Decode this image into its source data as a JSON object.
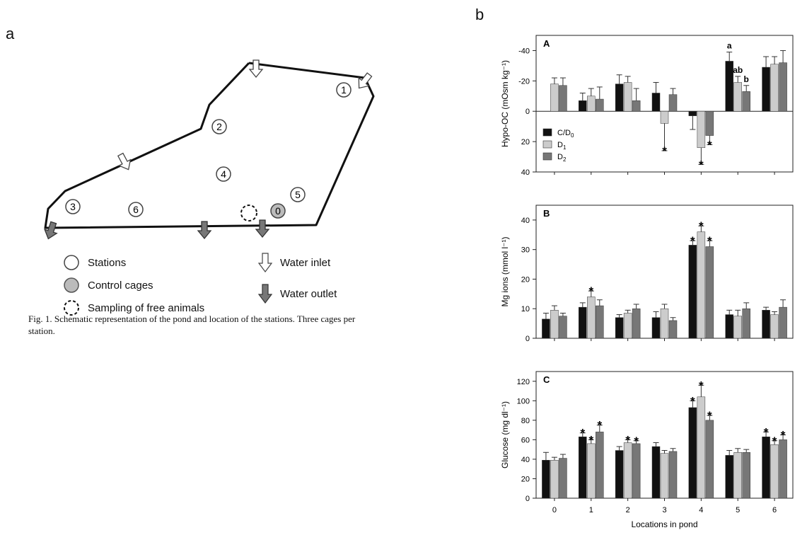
{
  "panel_labels": {
    "a": "a",
    "b": "b"
  },
  "map": {
    "stations": [
      {
        "id": "1",
        "kind": "station"
      },
      {
        "id": "2",
        "kind": "station"
      },
      {
        "id": "3",
        "kind": "station"
      },
      {
        "id": "4",
        "kind": "station"
      },
      {
        "id": "5",
        "kind": "station"
      },
      {
        "id": "6",
        "kind": "station"
      },
      {
        "id": "0",
        "kind": "control"
      }
    ],
    "legend": {
      "stations": "Stations",
      "control": "Control cages",
      "free": "Sampling of free animals",
      "inlet": "Water inlet",
      "outlet": "Water outlet"
    },
    "caption": "Fig. 1. Schematic representation of the pond and location of the stations. Three cages per station."
  },
  "chart_data": {
    "type": "bar",
    "xlabel": "Locations in pond",
    "categories": [
      "0",
      "1",
      "2",
      "3",
      "4",
      "5",
      "6"
    ],
    "legend": [
      {
        "main": "C/D",
        "sub": "0",
        "color": "#111111"
      },
      {
        "main": "D",
        "sub": "1",
        "color": "#cccccc"
      },
      {
        "main": "D",
        "sub": "2",
        "color": "#777777"
      }
    ],
    "subplots": [
      {
        "letter": "A",
        "ylabel": "Hypo-OC (mOsm kg⁻¹)",
        "ylim": [
          -50,
          40
        ],
        "inverted": true,
        "ticks": [
          -40,
          -20,
          0,
          20,
          40
        ],
        "tick_labels": [
          "-40",
          "-20",
          "0",
          "20",
          "40"
        ],
        "series": [
          {
            "values": [
              null,
              -7,
              -18,
              -12,
              3,
              -33,
              -29
            ],
            "err": [
              0,
              5,
              6,
              7,
              9,
              6,
              7
            ]
          },
          {
            "values": [
              -18,
              -10,
              -19,
              8,
              24,
              -19,
              -31
            ],
            "err": [
              4,
              5,
              4,
              18,
              11,
              4,
              5
            ]
          },
          {
            "values": [
              -17,
              -8,
              -7,
              -11,
              16,
              -13,
              -32
            ],
            "err": [
              5,
              8,
              8,
              4,
              6,
              4,
              8
            ]
          }
        ],
        "annotations": [
          {
            "cat": 3,
            "series": 1,
            "text": "*"
          },
          {
            "cat": 4,
            "series": 1,
            "text": "*"
          },
          {
            "cat": 4,
            "series": 2,
            "text": "*"
          },
          {
            "cat": 5,
            "series": 0,
            "text": "a"
          },
          {
            "cat": 5,
            "series": 1,
            "text": "ab"
          },
          {
            "cat": 5,
            "series": 2,
            "text": "b"
          }
        ]
      },
      {
        "letter": "B",
        "ylabel": "Mg ions (mmol l⁻¹)",
        "ylim": [
          0,
          45
        ],
        "inverted": false,
        "ticks": [
          0,
          10,
          20,
          30,
          40
        ],
        "tick_labels": [
          "0",
          "10",
          "20",
          "30",
          "40"
        ],
        "series": [
          {
            "values": [
              6.5,
              10.5,
              7,
              7,
              31.5,
              8,
              9.5
            ],
            "err": [
              2,
              1.5,
              1,
              2,
              1.5,
              1.5,
              1
            ]
          },
          {
            "values": [
              9.5,
              14,
              8.5,
              10,
              36,
              7.5,
              8
            ],
            "err": [
              1.5,
              2,
              1,
              1.5,
              2,
              2,
              1
            ]
          },
          {
            "values": [
              7.5,
              11,
              10,
              6,
              31,
              10,
              10.5
            ],
            "err": [
              1,
              2,
              1.5,
              1,
              2,
              2,
              2.5
            ]
          }
        ],
        "annotations": [
          {
            "cat": 1,
            "series": 1,
            "text": "*"
          },
          {
            "cat": 4,
            "series": 0,
            "text": "*"
          },
          {
            "cat": 4,
            "series": 1,
            "text": "*"
          },
          {
            "cat": 4,
            "series": 2,
            "text": "*"
          }
        ]
      },
      {
        "letter": "C",
        "ylabel": "Glucose (mg dl⁻¹)",
        "ylim": [
          0,
          130
        ],
        "inverted": false,
        "ticks": [
          0,
          20,
          40,
          60,
          80,
          100,
          120
        ],
        "tick_labels": [
          "0",
          "20",
          "40",
          "60",
          "80",
          "100",
          "120"
        ],
        "series": [
          {
            "values": [
              39,
              63,
              49,
              53,
              93,
              44,
              63
            ],
            "err": [
              8,
              4,
              4,
              4,
              7,
              5,
              5
            ]
          },
          {
            "values": [
              39,
              56,
              57,
              46,
              104,
              47,
              55
            ],
            "err": [
              3,
              4,
              3,
              3,
              12,
              4,
              4
            ]
          },
          {
            "values": [
              41,
              68,
              56,
              48,
              80,
              47,
              60
            ],
            "err": [
              4,
              7,
              3,
              3,
              5,
              3,
              5
            ]
          }
        ],
        "annotations": [
          {
            "cat": 1,
            "series": 0,
            "text": "*"
          },
          {
            "cat": 1,
            "series": 1,
            "text": "*"
          },
          {
            "cat": 1,
            "series": 2,
            "text": "*"
          },
          {
            "cat": 2,
            "series": 1,
            "text": "*"
          },
          {
            "cat": 2,
            "series": 2,
            "text": "*"
          },
          {
            "cat": 4,
            "series": 0,
            "text": "*"
          },
          {
            "cat": 4,
            "series": 1,
            "text": "*"
          },
          {
            "cat": 4,
            "series": 2,
            "text": "*"
          },
          {
            "cat": 6,
            "series": 0,
            "text": "*"
          },
          {
            "cat": 6,
            "series": 1,
            "text": "*"
          },
          {
            "cat": 6,
            "series": 2,
            "text": "*"
          }
        ]
      }
    ]
  }
}
